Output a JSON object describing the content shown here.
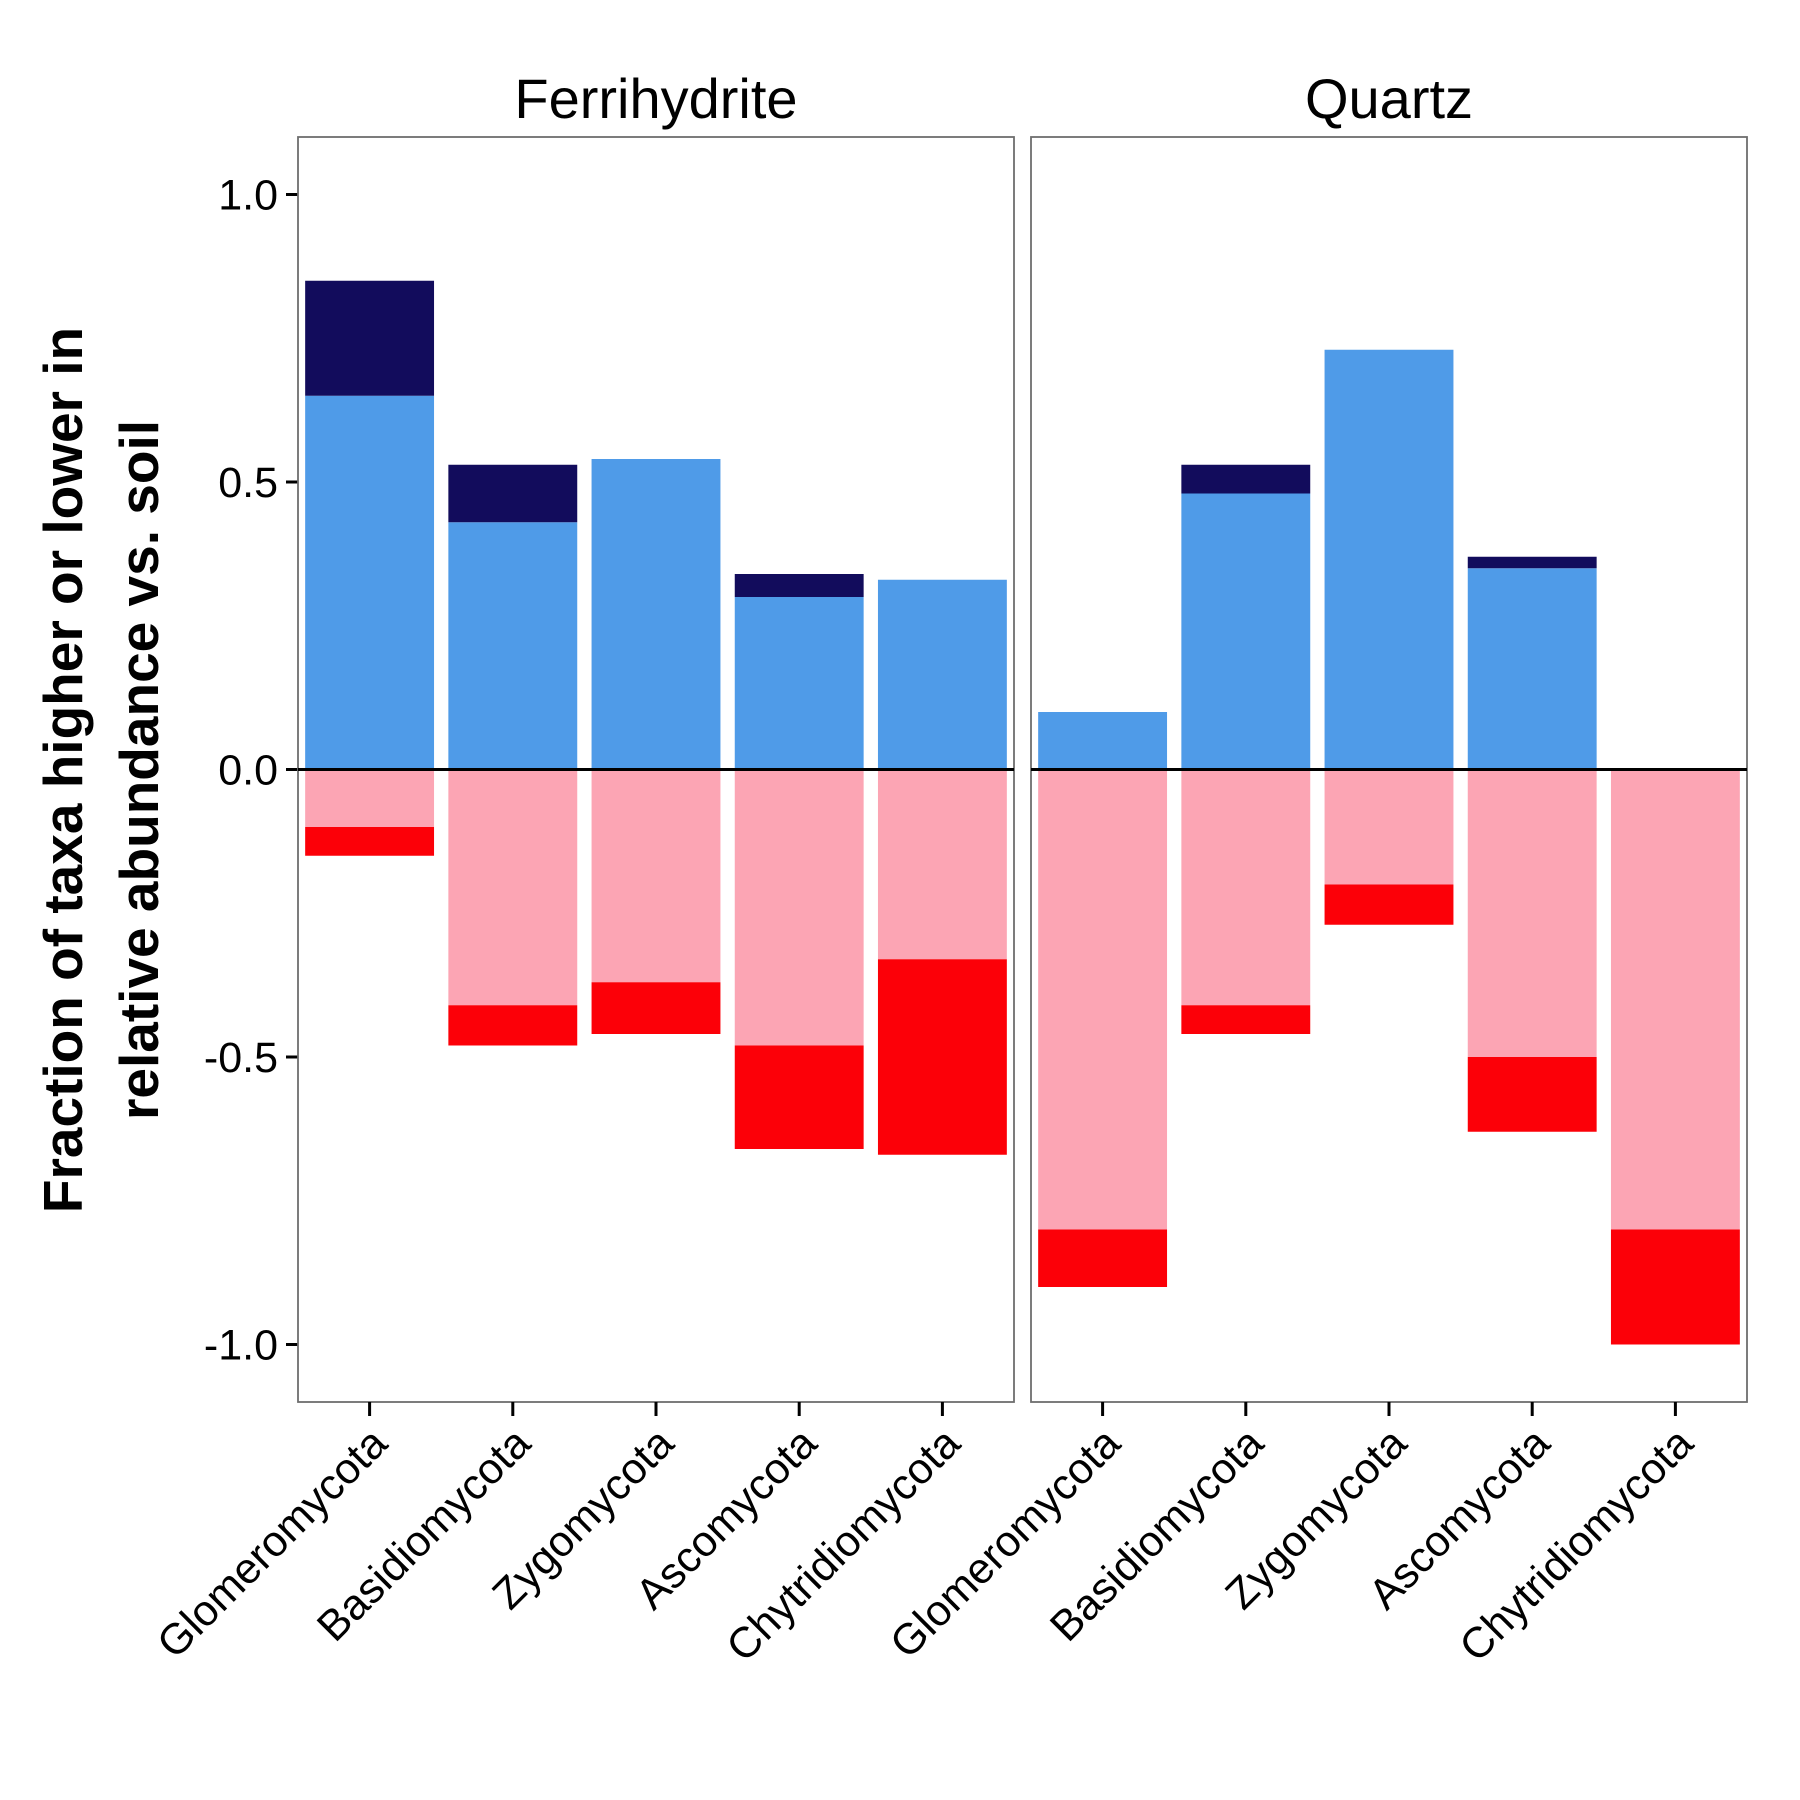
{
  "chart_data": {
    "type": "bar",
    "stacked": true,
    "ylabel": [
      "Fraction of taxa higher or lower in",
      "relative abundance vs. soil"
    ],
    "xlabel": "",
    "ylim": [
      -1.1,
      1.1
    ],
    "yticks": [
      1.0,
      0.5,
      0.0,
      -0.5,
      -1.0
    ],
    "ytick_labels": [
      "1.0",
      "0.5",
      "0.0",
      "-0.5",
      "-1.0"
    ],
    "zero_line": true,
    "grid": false,
    "legend": "none",
    "categories": [
      "Glomeromycota",
      "Basidiomycota",
      "Zygomycota",
      "Ascomycota",
      "Chytridiomycota"
    ],
    "colors": {
      "higher_light": "#4f9be8",
      "higher_dark": "#120c5c",
      "lower_light": "#fca5b4",
      "lower_dark": "#fc0008"
    },
    "panels": [
      {
        "title": "Ferrihydrite",
        "higher_light": [
          0.65,
          0.43,
          0.54,
          0.3,
          0.33
        ],
        "higher_dark": [
          0.2,
          0.1,
          0.0,
          0.04,
          0.0
        ],
        "lower_light": [
          -0.1,
          -0.41,
          -0.37,
          -0.48,
          -0.33
        ],
        "lower_dark": [
          -0.05,
          -0.07,
          -0.09,
          -0.18,
          -0.34
        ]
      },
      {
        "title": "Quartz",
        "higher_light": [
          0.1,
          0.48,
          0.73,
          0.35,
          0.0
        ],
        "higher_dark": [
          0.0,
          0.05,
          0.0,
          0.02,
          0.0
        ],
        "lower_light": [
          -0.8,
          -0.41,
          -0.2,
          -0.5,
          -0.8
        ],
        "lower_dark": [
          -0.1,
          -0.05,
          -0.07,
          -0.13,
          -0.2
        ]
      }
    ]
  }
}
